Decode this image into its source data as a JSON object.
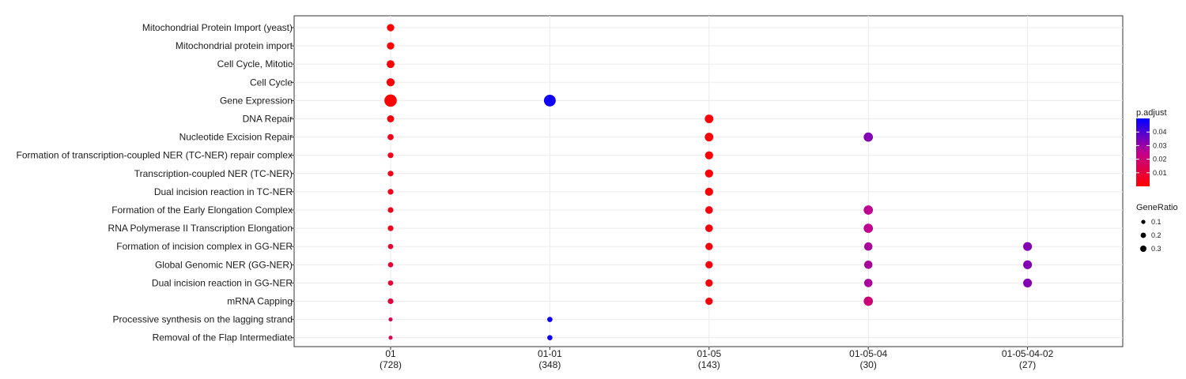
{
  "chart_data": {
    "type": "scatter",
    "categories_y": [
      "Mitochondrial Protein Import (yeast)",
      "Mitochondrial protein import",
      "Cell Cycle, Mitotic",
      "Cell Cycle",
      "Gene Expression",
      "DNA Repair",
      "Nucleotide Excision Repair",
      "Formation of transcription-coupled NER (TC-NER) repair complex",
      "Transcription-coupled NER (TC-NER)",
      "Dual incision reaction in TC-NER",
      "Formation of the Early Elongation Complex",
      "RNA Polymerase II Transcription Elongation",
      "Formation of incision complex in GG-NER",
      "Global Genomic NER (GG-NER)",
      "Dual incision reaction in GG-NER",
      "mRNA Capping",
      "Processive synthesis on the lagging strand",
      "Removal of the Flap Intermediate"
    ],
    "categories_x": [
      {
        "label": "01",
        "count": "(728)"
      },
      {
        "label": "01-01",
        "count": "(348)"
      },
      {
        "label": "01-05",
        "count": "(143)"
      },
      {
        "label": "01-05-04",
        "count": "(30)"
      },
      {
        "label": "01-05-04-02",
        "count": "(27)"
      }
    ],
    "points": [
      {
        "x": 0,
        "y": 0,
        "gene_ratio": 0.09,
        "p_adjust": 0.001
      },
      {
        "x": 0,
        "y": 1,
        "gene_ratio": 0.09,
        "p_adjust": 0.001
      },
      {
        "x": 0,
        "y": 2,
        "gene_ratio": 0.11,
        "p_adjust": 0.001
      },
      {
        "x": 0,
        "y": 3,
        "gene_ratio": 0.12,
        "p_adjust": 0.001
      },
      {
        "x": 0,
        "y": 4,
        "gene_ratio": 0.36,
        "p_adjust": 0.0005
      },
      {
        "x": 0,
        "y": 5,
        "gene_ratio": 0.08,
        "p_adjust": 0.002
      },
      {
        "x": 0,
        "y": 6,
        "gene_ratio": 0.05,
        "p_adjust": 0.004
      },
      {
        "x": 0,
        "y": 7,
        "gene_ratio": 0.04,
        "p_adjust": 0.004
      },
      {
        "x": 0,
        "y": 8,
        "gene_ratio": 0.04,
        "p_adjust": 0.004
      },
      {
        "x": 0,
        "y": 9,
        "gene_ratio": 0.04,
        "p_adjust": 0.004
      },
      {
        "x": 0,
        "y": 10,
        "gene_ratio": 0.04,
        "p_adjust": 0.004
      },
      {
        "x": 0,
        "y": 11,
        "gene_ratio": 0.04,
        "p_adjust": 0.004
      },
      {
        "x": 0,
        "y": 12,
        "gene_ratio": 0.03,
        "p_adjust": 0.008
      },
      {
        "x": 0,
        "y": 13,
        "gene_ratio": 0.03,
        "p_adjust": 0.008
      },
      {
        "x": 0,
        "y": 14,
        "gene_ratio": 0.03,
        "p_adjust": 0.008
      },
      {
        "x": 0,
        "y": 15,
        "gene_ratio": 0.04,
        "p_adjust": 0.01
      },
      {
        "x": 0,
        "y": 16,
        "gene_ratio": 0.01,
        "p_adjust": 0.015
      },
      {
        "x": 0,
        "y": 17,
        "gene_ratio": 0.01,
        "p_adjust": 0.015
      },
      {
        "x": 1,
        "y": 4,
        "gene_ratio": 0.32,
        "p_adjust": 0.048
      },
      {
        "x": 1,
        "y": 16,
        "gene_ratio": 0.03,
        "p_adjust": 0.048
      },
      {
        "x": 1,
        "y": 17,
        "gene_ratio": 0.03,
        "p_adjust": 0.048
      },
      {
        "x": 2,
        "y": 5,
        "gene_ratio": 0.14,
        "p_adjust": 0.001
      },
      {
        "x": 2,
        "y": 6,
        "gene_ratio": 0.14,
        "p_adjust": 0.001
      },
      {
        "x": 2,
        "y": 7,
        "gene_ratio": 0.12,
        "p_adjust": 0.001
      },
      {
        "x": 2,
        "y": 8,
        "gene_ratio": 0.12,
        "p_adjust": 0.001
      },
      {
        "x": 2,
        "y": 9,
        "gene_ratio": 0.12,
        "p_adjust": 0.001
      },
      {
        "x": 2,
        "y": 10,
        "gene_ratio": 0.1,
        "p_adjust": 0.002
      },
      {
        "x": 2,
        "y": 11,
        "gene_ratio": 0.1,
        "p_adjust": 0.002
      },
      {
        "x": 2,
        "y": 12,
        "gene_ratio": 0.09,
        "p_adjust": 0.002
      },
      {
        "x": 2,
        "y": 13,
        "gene_ratio": 0.09,
        "p_adjust": 0.002
      },
      {
        "x": 2,
        "y": 14,
        "gene_ratio": 0.09,
        "p_adjust": 0.002
      },
      {
        "x": 2,
        "y": 15,
        "gene_ratio": 0.09,
        "p_adjust": 0.002
      },
      {
        "x": 3,
        "y": 6,
        "gene_ratio": 0.17,
        "p_adjust": 0.033
      },
      {
        "x": 3,
        "y": 10,
        "gene_ratio": 0.17,
        "p_adjust": 0.025
      },
      {
        "x": 3,
        "y": 11,
        "gene_ratio": 0.17,
        "p_adjust": 0.025
      },
      {
        "x": 3,
        "y": 12,
        "gene_ratio": 0.13,
        "p_adjust": 0.028
      },
      {
        "x": 3,
        "y": 13,
        "gene_ratio": 0.13,
        "p_adjust": 0.028
      },
      {
        "x": 3,
        "y": 14,
        "gene_ratio": 0.13,
        "p_adjust": 0.028
      },
      {
        "x": 3,
        "y": 15,
        "gene_ratio": 0.17,
        "p_adjust": 0.02
      },
      {
        "x": 4,
        "y": 12,
        "gene_ratio": 0.15,
        "p_adjust": 0.033
      },
      {
        "x": 4,
        "y": 13,
        "gene_ratio": 0.15,
        "p_adjust": 0.033
      },
      {
        "x": 4,
        "y": 14,
        "gene_ratio": 0.15,
        "p_adjust": 0.033
      }
    ],
    "xlabel": "",
    "ylabel": "",
    "grid": true,
    "legend_placement": "right",
    "color_legend": {
      "title": "p.adjust",
      "ticks": [
        0.01,
        0.02,
        0.03,
        0.04
      ],
      "tick_labels": [
        "0.01",
        "0.02",
        "0.03",
        "0.04"
      ],
      "range": [
        0,
        0.05
      ],
      "low_color": "#ff0000",
      "high_color": "#0000ff"
    },
    "size_legend": {
      "title": "GeneRatio",
      "values": [
        0.1,
        0.2,
        0.3
      ],
      "labels": [
        "0.1",
        "0.2",
        "0.3"
      ]
    }
  }
}
